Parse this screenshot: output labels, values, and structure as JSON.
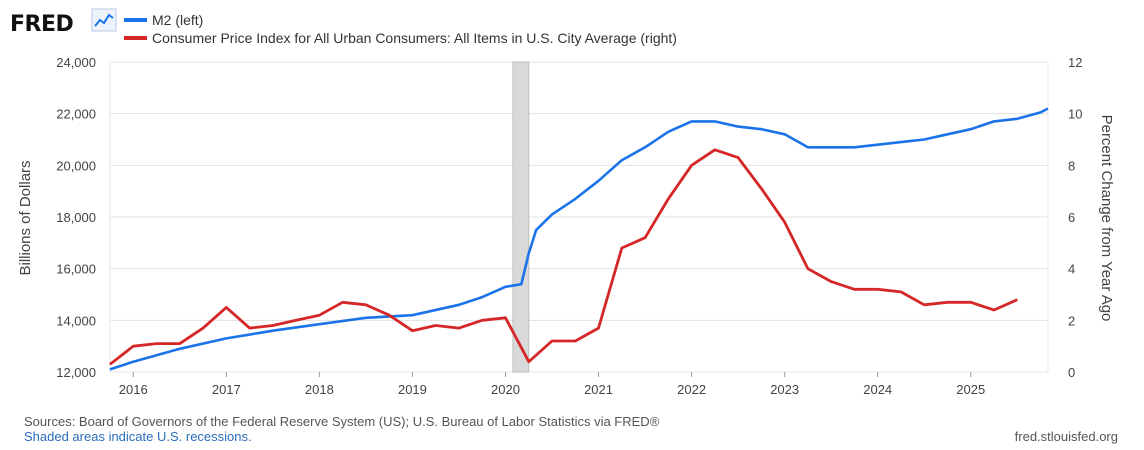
{
  "logo": {
    "text": "FRED"
  },
  "chart_data": {
    "type": "line",
    "title": "",
    "y_left_label": "Billions of Dollars",
    "y_right_label": "Percent Change from Year Ago",
    "y_left_ticks": [
      "12,000",
      "14,000",
      "16,000",
      "18,000",
      "20,000",
      "22,000",
      "24,000"
    ],
    "y_right_ticks": [
      "0",
      "2",
      "4",
      "6",
      "8",
      "10",
      "12"
    ],
    "y_left_range": [
      12000,
      24000
    ],
    "y_right_range": [
      0,
      12
    ],
    "x_range": [
      2015.75,
      2025.83
    ],
    "x_ticks": [
      "2016",
      "2017",
      "2018",
      "2019",
      "2020",
      "2021",
      "2022",
      "2023",
      "2024",
      "2025"
    ],
    "grid": true,
    "recessions": [
      {
        "start": 2020.08,
        "end": 2020.25
      }
    ],
    "series": [
      {
        "name": "M2 (left)",
        "axis": "left",
        "color": "#1a73e8",
        "x": [
          2015.75,
          2016.0,
          2016.5,
          2017.0,
          2017.5,
          2018.0,
          2018.5,
          2019.0,
          2019.5,
          2019.75,
          2020.0,
          2020.17,
          2020.25,
          2020.33,
          2020.5,
          2020.75,
          2021.0,
          2021.25,
          2021.5,
          2021.75,
          2022.0,
          2022.25,
          2022.5,
          2022.75,
          2023.0,
          2023.25,
          2023.5,
          2023.75,
          2024.0,
          2024.25,
          2024.5,
          2024.75,
          2025.0,
          2025.25,
          2025.5,
          2025.75,
          2025.83
        ],
        "values": [
          12100,
          12400,
          12900,
          13300,
          13600,
          13850,
          14100,
          14200,
          14600,
          14900,
          15300,
          15400,
          16600,
          17500,
          18100,
          18700,
          19400,
          20200,
          20700,
          21300,
          21700,
          21700,
          21500,
          21400,
          21200,
          20700,
          20700,
          20700,
          20800,
          20900,
          21000,
          21200,
          21400,
          21700,
          21800,
          22050,
          22200
        ]
      },
      {
        "name": "Consumer Price Index for All Urban Consumers: All Items in U.S. City Average (right)",
        "axis": "right",
        "color": "#d62728",
        "x": [
          2015.75,
          2016.0,
          2016.25,
          2016.5,
          2016.75,
          2017.0,
          2017.25,
          2017.5,
          2017.75,
          2018.0,
          2018.25,
          2018.5,
          2018.75,
          2019.0,
          2019.25,
          2019.5,
          2019.75,
          2020.0,
          2020.25,
          2020.5,
          2020.75,
          2021.0,
          2021.25,
          2021.5,
          2021.75,
          2022.0,
          2022.25,
          2022.5,
          2022.75,
          2023.0,
          2023.25,
          2023.5,
          2023.75,
          2024.0,
          2024.25,
          2024.5,
          2024.75,
          2025.0,
          2025.25,
          2025.5
        ],
        "values": [
          0.3,
          1.0,
          1.1,
          1.1,
          1.7,
          2.5,
          1.7,
          1.8,
          2.0,
          2.2,
          2.7,
          2.6,
          2.2,
          1.6,
          1.8,
          1.7,
          2.0,
          2.1,
          0.4,
          1.2,
          1.2,
          1.7,
          4.8,
          5.2,
          6.7,
          8.0,
          8.6,
          8.3,
          7.1,
          5.8,
          4.0,
          3.5,
          3.2,
          3.2,
          3.1,
          2.6,
          2.7,
          2.7,
          2.4,
          2.8
        ]
      }
    ]
  },
  "footer": {
    "sources": "Sources: Board of Governors of the Federal Reserve System (US); U.S. Bureau of Labor Statistics via FRED®",
    "recession_note": "Shaded areas indicate U.S. recessions.",
    "site": "fred.stlouisfed.org"
  }
}
